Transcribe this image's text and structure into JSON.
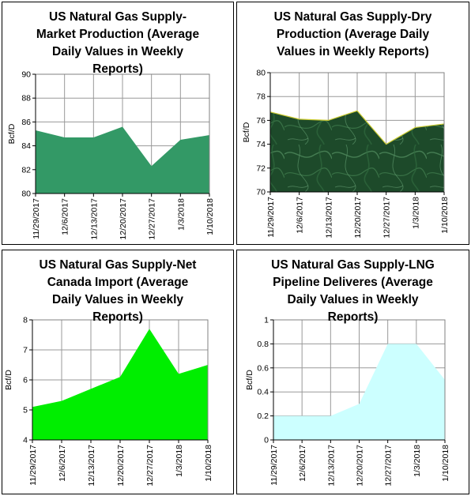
{
  "chart_data": [
    {
      "type": "area",
      "title": "US Natural Gas Supply-\nMarket Production (Average\nDaily Values in Weekly\nReports)",
      "ylabel": "Bcf/D",
      "xlabel": "",
      "categories": [
        "11/29/2017",
        "12/6/2017",
        "12/13/2017",
        "12/20/2017",
        "12/27/2017",
        "1/3/2018",
        "1/10/2018"
      ],
      "y_ticks": [
        "80",
        "82",
        "84",
        "86",
        "88",
        "90"
      ],
      "ylim": [
        80,
        90
      ],
      "values": [
        85.3,
        84.7,
        84.7,
        85.6,
        82.3,
        84.5,
        84.9
      ],
      "fill_color": "#339966",
      "fill_style": "solid",
      "grid": true
    },
    {
      "type": "area",
      "title": "US Natural Gas Supply-Dry\nProduction (Average Daily\nValues in Weekly Reports)",
      "ylabel": "Bcf/D",
      "xlabel": "",
      "categories": [
        "11/29/2017",
        "12/6/2017",
        "12/13/2017",
        "12/20/2017",
        "12/27/2017",
        "1/3/2018",
        "1/10/2018"
      ],
      "y_ticks": [
        "70",
        "72",
        "74",
        "76",
        "78",
        "80"
      ],
      "ylim": [
        70,
        80
      ],
      "values": [
        76.7,
        76.1,
        76.0,
        76.8,
        74.0,
        75.4,
        75.7
      ],
      "fill_color": "#1f4a2b",
      "fill_style": "marble",
      "edge_color": "#cccc33",
      "grid": true
    },
    {
      "type": "area",
      "title": "US Natural Gas Supply-Net\nCanada Import (Average\nDaily Values in Weekly\nReports)",
      "ylabel": "Bcf/D",
      "xlabel": "",
      "categories": [
        "11/29/2017",
        "12/6/2017",
        "12/13/2017",
        "12/20/2017",
        "12/27/2017",
        "1/3/2018",
        "1/10/2018"
      ],
      "y_ticks": [
        "4",
        "5",
        "6",
        "7",
        "8"
      ],
      "ylim": [
        4,
        8
      ],
      "values": [
        5.1,
        5.3,
        5.7,
        6.1,
        7.7,
        6.2,
        6.5
      ],
      "fill_color": "#00ee00",
      "fill_style": "solid",
      "grid": true
    },
    {
      "type": "area",
      "title": "US Natural Gas Supply-LNG\nPipeline Deliveres (Average\nDaily Values in Weekly\nReports)",
      "ylabel": "Bcf/D",
      "xlabel": "",
      "categories": [
        "11/29/2017",
        "12/6/2017",
        "12/13/2017",
        "12/20/2017",
        "12/27/2017",
        "1/3/2018",
        "1/10/2018"
      ],
      "y_ticks": [
        "0",
        "0.2",
        "0.4",
        "0.6",
        "0.8",
        "1"
      ],
      "ylim": [
        0,
        1
      ],
      "values": [
        0.2,
        0.2,
        0.2,
        0.3,
        0.8,
        0.8,
        0.5
      ],
      "fill_color": "#ccffff",
      "fill_style": "solid",
      "grid": true
    }
  ]
}
